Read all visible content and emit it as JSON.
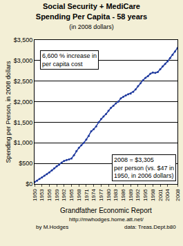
{
  "chart_data": {
    "type": "line",
    "title": "Social Security + MediCare\nSpending Per Capita - 58 years",
    "subtitle": "(in 2008 dollars)",
    "y_label": "Spending per Person, in 2008 dollars",
    "annotations": [
      "6,600 % increase in\nper capita cost",
      "2008 = $3,305\nper person (vs. $47 in\n1950, in 2006 dollars)"
    ],
    "footer": [
      "Grandfather Economic Report",
      "http://mwhodges.home.att.net/",
      "by M.Hodges",
      "data: Treas.Dept.b80"
    ],
    "x": [
      1950,
      1951,
      1952,
      1953,
      1954,
      1955,
      1956,
      1957,
      1958,
      1959,
      1960,
      1961,
      1962,
      1963,
      1964,
      1965,
      1966,
      1967,
      1968,
      1969,
      1970,
      1971,
      1972,
      1973,
      1974,
      1975,
      1976,
      1977,
      1978,
      1979,
      1980,
      1981,
      1982,
      1983,
      1984,
      1985,
      1986,
      1987,
      1988,
      1989,
      1990,
      1991,
      1992,
      1993,
      1994,
      1995,
      1996,
      1997,
      1998,
      1999,
      2000,
      2001,
      2002,
      2003,
      2004,
      2005,
      2006,
      2007,
      2008
    ],
    "values": [
      47,
      80,
      120,
      160,
      200,
      240,
      280,
      330,
      380,
      430,
      470,
      520,
      560,
      580,
      600,
      620,
      700,
      800,
      880,
      940,
      1000,
      1080,
      1170,
      1280,
      1330,
      1400,
      1500,
      1580,
      1640,
      1700,
      1780,
      1850,
      1900,
      1960,
      2000,
      2080,
      2120,
      2150,
      2180,
      2200,
      2240,
      2300,
      2380,
      2450,
      2520,
      2580,
      2620,
      2680,
      2710,
      2700,
      2720,
      2790,
      2860,
      2920,
      2980,
      3060,
      3140,
      3220,
      3305
    ],
    "color": "#1f3a9e",
    "marker": "circle",
    "line_style": "solid",
    "xlim": [
      1950,
      2008
    ],
    "xticks": [
      1950,
      1953,
      1956,
      1959,
      1962,
      1965,
      1968,
      1971,
      1974,
      1977,
      1980,
      1983,
      1986,
      1989,
      1992,
      1995,
      1998,
      2001,
      2004,
      2008
    ],
    "ylim": [
      0,
      3500
    ],
    "yticks": [
      {
        "value": 0,
        "label": "$0"
      },
      {
        "value": 500,
        "label": "$500"
      },
      {
        "value": 1000,
        "label": "$1,000"
      },
      {
        "value": 1500,
        "label": "$1,500"
      },
      {
        "value": 2000,
        "label": "$2,000"
      },
      {
        "value": 2500,
        "label": "$2,500"
      },
      {
        "value": 3000,
        "label": "$3,000"
      },
      {
        "value": 3500,
        "label": "$3,500"
      }
    ],
    "grid": true
  }
}
